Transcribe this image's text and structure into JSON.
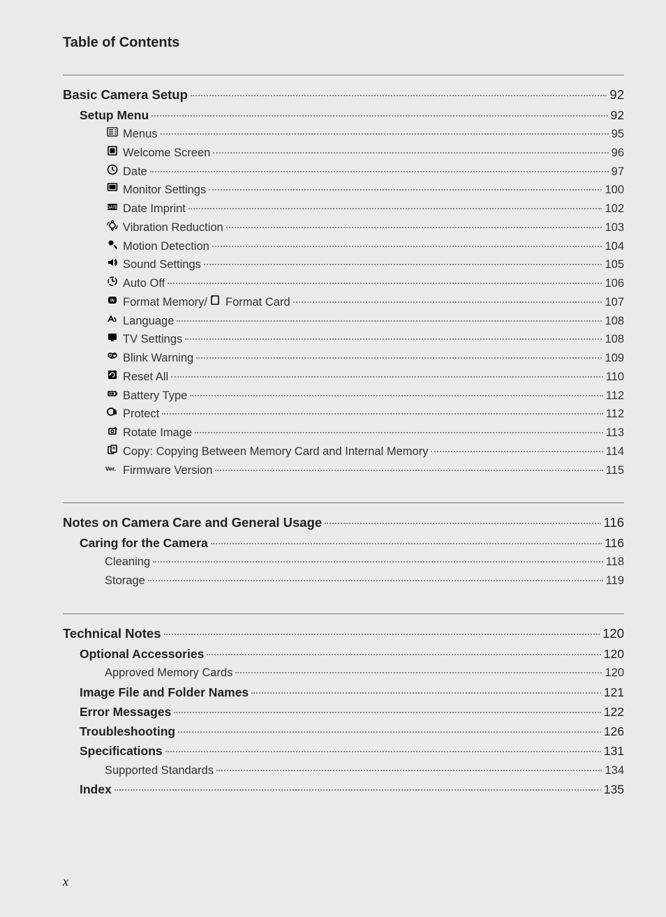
{
  "header": {
    "title": "Table of Contents"
  },
  "footer": {
    "page_number": "x"
  },
  "colors": {
    "background": "#eaeaea",
    "text": "#222222",
    "leader": "#888888",
    "divider": "#777777"
  },
  "typography": {
    "base_font": "Segoe UI / Helvetica Neue",
    "header_size_pt": 15,
    "lvl0_size_pt": 14,
    "lvl1_size_pt": 13,
    "lvl2_size_pt": 12
  },
  "sections": [
    {
      "entries": [
        {
          "level": 0,
          "icon": null,
          "label": "Basic Camera Setup",
          "page": "92",
          "link": true
        },
        {
          "level": 1,
          "icon": null,
          "label": "Setup Menu",
          "page": "92",
          "link": true
        },
        {
          "level": 2,
          "icon": "menu",
          "label": "Menus",
          "page": "95",
          "link": true
        },
        {
          "level": 2,
          "icon": "welcome",
          "label": "Welcome Screen",
          "page": "96",
          "link": true
        },
        {
          "level": 2,
          "icon": "clock",
          "label": "Date",
          "page": "97",
          "link": true
        },
        {
          "level": 2,
          "icon": "monitor",
          "label": "Monitor Settings",
          "page": "100",
          "link": true
        },
        {
          "level": 2,
          "icon": "date",
          "label": "Date Imprint",
          "page": "102",
          "link": true
        },
        {
          "level": 2,
          "icon": "vr",
          "label": "Vibration Reduction",
          "page": "103",
          "link": true
        },
        {
          "level": 2,
          "icon": "motion",
          "label": "Motion Detection",
          "page": "104",
          "link": true
        },
        {
          "level": 2,
          "icon": "sound",
          "label": "Sound Settings",
          "page": "105",
          "link": true
        },
        {
          "level": 2,
          "icon": "autooff",
          "label": "Auto Off",
          "page": "106",
          "link": true
        },
        {
          "level": 2,
          "icon": "format",
          "label": "Format Memory/",
          "label2": " Format Card",
          "icon2": "card",
          "page": "107",
          "link": true
        },
        {
          "level": 2,
          "icon": "lang",
          "label": "Language",
          "page": "108",
          "link": true
        },
        {
          "level": 2,
          "icon": "tv",
          "label": "TV Settings",
          "page": "108",
          "link": true
        },
        {
          "level": 2,
          "icon": "blink",
          "label": "Blink Warning",
          "page": "109",
          "link": true
        },
        {
          "level": 2,
          "icon": "reset",
          "label": "Reset All",
          "page": "110",
          "link": true
        },
        {
          "level": 2,
          "icon": "battery",
          "label": "Battery Type",
          "page": "112",
          "link": true
        },
        {
          "level": 2,
          "icon": "protect",
          "label": "Protect",
          "page": "112",
          "link": true
        },
        {
          "level": 2,
          "icon": "rotate",
          "label": "Rotate Image",
          "page": "113",
          "link": true
        },
        {
          "level": 2,
          "icon": "copy",
          "label": "Copy: Copying Between Memory Card and Internal Memory",
          "page": "114",
          "link": true
        },
        {
          "level": 2,
          "icon": "ver",
          "label": "Firmware Version",
          "page": "115",
          "link": true
        }
      ]
    },
    {
      "entries": [
        {
          "level": 0,
          "icon": null,
          "label": "Notes on Camera Care and General Usage",
          "page": "116",
          "link": true
        },
        {
          "level": 1,
          "icon": null,
          "label": "Caring for the Camera",
          "page": "116",
          "link": true
        },
        {
          "level": 2,
          "icon": null,
          "label": "Cleaning",
          "page": "118",
          "link": true
        },
        {
          "level": 2,
          "icon": null,
          "label": "Storage",
          "page": "119",
          "link": true
        }
      ]
    },
    {
      "entries": [
        {
          "level": 0,
          "icon": null,
          "label": "Technical Notes",
          "page": "120",
          "link": true
        },
        {
          "level": 1,
          "icon": null,
          "label": "Optional Accessories",
          "page": "120",
          "link": true
        },
        {
          "level": 2,
          "icon": null,
          "label": "Approved Memory Cards",
          "page": "120",
          "link": true
        },
        {
          "level": 1,
          "icon": null,
          "label": "Image File and Folder Names",
          "page": "121",
          "link": true
        },
        {
          "level": 1,
          "icon": null,
          "label": "Error Messages",
          "page": "122",
          "link": true
        },
        {
          "level": 1,
          "icon": null,
          "label": "Troubleshooting",
          "page": "126",
          "link": true
        },
        {
          "level": 1,
          "icon": null,
          "label": "Specifications",
          "page": "131",
          "link": true
        },
        {
          "level": 2,
          "icon": null,
          "label": "Supported Standards",
          "page": "134",
          "link": true
        },
        {
          "level": 1,
          "icon": null,
          "label": "Index",
          "page": "135",
          "link": true
        }
      ]
    }
  ]
}
